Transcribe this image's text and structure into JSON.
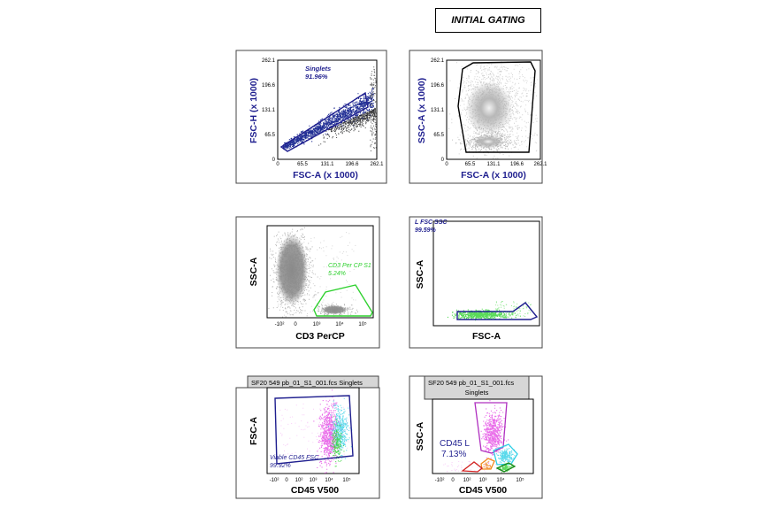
{
  "page": {
    "heading": "INITIAL GATING"
  },
  "colors": {
    "navy": "#1f1f8f",
    "navy_dots": "#0a1a8a",
    "black_dots": "#111111",
    "gray_dots": "#7a7a7a",
    "green": "#2fd12f",
    "magenta": "#e23ee2",
    "cyan": "#2ecfe6",
    "orange": "#f08a1c",
    "red": "#d22020",
    "dark_green": "#1a8a1a",
    "purple_gate": "#b030c0"
  },
  "chart_data": [
    {
      "id": "p1",
      "type": "scatter",
      "xlabel": "FSC-A (x 1000)",
      "ylabel": "FSC-H (x 1000)",
      "label_color": "navy",
      "xlim": [
        0,
        262.1
      ],
      "ylim": [
        0,
        262.1
      ],
      "xticks": [
        "0",
        "65.5",
        "131.1",
        "196.6",
        "262.1"
      ],
      "yticks": [
        "0",
        "65.5",
        "131.1",
        "196.6",
        "262.1"
      ],
      "gate_name": "Singlets",
      "gate_pct": "91.96%"
    },
    {
      "id": "p2",
      "type": "scatter",
      "xlabel": "FSC-A (x 1000)",
      "ylabel": "SSC-A (x 1000)",
      "label_color": "navy",
      "xlim": [
        0,
        262.1
      ],
      "ylim": [
        0,
        262.1
      ],
      "xticks": [
        "0",
        "65.5",
        "131.1",
        "196.6",
        "262.1"
      ],
      "yticks": [
        "0",
        "65.5",
        "131.1",
        "196.6",
        "262.1"
      ]
    },
    {
      "id": "p3",
      "type": "scatter",
      "xlabel": "CD3 PerCP",
      "ylabel": "SSC-A",
      "label_color": "black",
      "xticks": [
        "-10²",
        "0",
        "10³",
        "10⁴",
        "10⁵"
      ],
      "gate_name": "CD3 Per CP S1",
      "gate_pct": "5.24%"
    },
    {
      "id": "p4",
      "type": "scatter",
      "xlabel": "FSC-A",
      "ylabel": "SSC-A",
      "label_color": "black",
      "gate_name": "L FSC SSC",
      "gate_pct": "99.59%"
    },
    {
      "id": "p5",
      "type": "scatter",
      "file_label": "SF20 549 pb_01_S1_001.fcs Singlets",
      "xlabel": "CD45 V500",
      "ylabel": "FSC-A",
      "label_color": "black",
      "xticks": [
        "-10²",
        "0",
        "10²",
        "10³",
        "10⁴",
        "10⁵"
      ],
      "gate_name": "Viable CD45 FSC",
      "gate_pct": "99.92%"
    },
    {
      "id": "p6",
      "type": "scatter",
      "file_label": "SF20 549 pb_01_S1_001.fcs",
      "file_label_2": "Singlets",
      "xlabel": "CD45 V500",
      "ylabel": "SSC-A",
      "label_color": "black",
      "xticks": [
        "-10²",
        "0",
        "10²",
        "10³",
        "10⁴",
        "10⁵"
      ],
      "gate_name": "CD45 L",
      "gate_pct": "7.13%"
    }
  ]
}
